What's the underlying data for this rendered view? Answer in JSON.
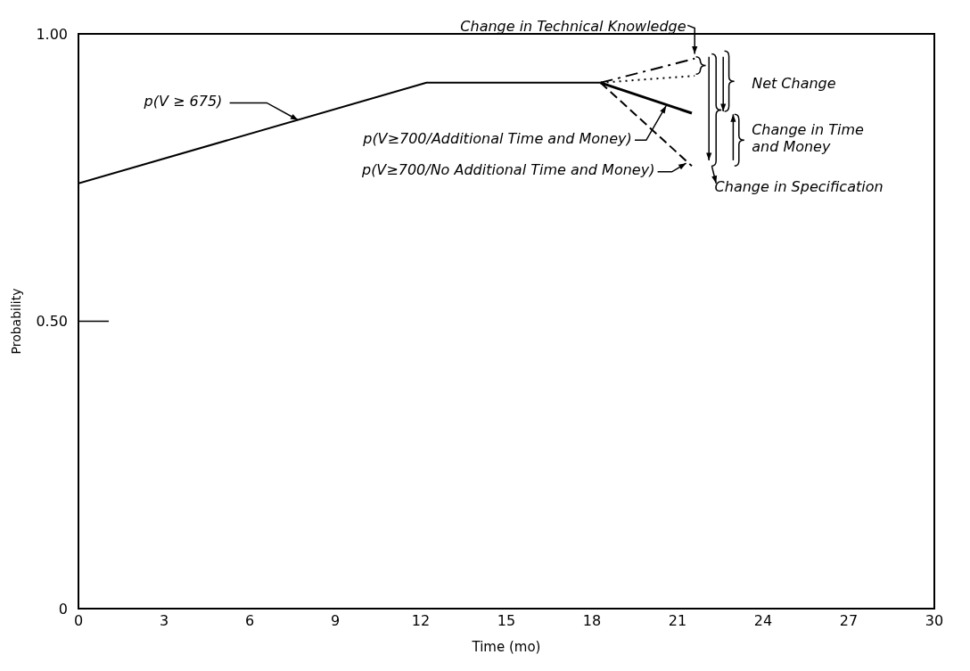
{
  "chart_data": {
    "type": "line",
    "xlabel": "Time (mo)",
    "ylabel": "Probability",
    "xlim": [
      0,
      30
    ],
    "xticks": [
      0,
      3,
      6,
      9,
      12,
      15,
      18,
      21,
      24,
      27,
      30
    ],
    "ylim": [
      0,
      1
    ],
    "yticks": [
      0,
      {
        "value": 0.5,
        "label": "0.50"
      },
      {
        "value": 1,
        "label": "1.00"
      }
    ],
    "marker": "none",
    "series": [
      {
        "color": "#000000",
        "x": [
          0,
          12.2,
          18.3
        ],
        "values": [
          0.74,
          0.915,
          0.915
        ],
        "line_style": "solid"
      },
      {
        "color": "#000000",
        "x": [
          18.3,
          21.6
        ],
        "values": [
          0.915,
          0.957
        ],
        "line_style": "dashdot"
      },
      {
        "color": "#000000",
        "x": [
          18.3,
          21.6
        ],
        "values": [
          0.915,
          0.927
        ],
        "line_style": "dotted"
      },
      {
        "color": "#000000",
        "x": [
          18.3,
          21.5
        ],
        "values": [
          0.915,
          0.862
        ],
        "line_style": "solid"
      },
      {
        "color": "#000000",
        "x": [
          18.3,
          21.5
        ],
        "values": [
          0.915,
          0.77
        ],
        "line_style": "dashed"
      }
    ],
    "annotations": [
      {
        "text": "p(V ≥ 675)",
        "x": 7.7,
        "y": 0.85
      },
      "Change in Technical Knowledge",
      "Net Change",
      "p(V≥700/Additional Time and Money)",
      "p(V≥700/No Additional Time and Money)",
      "Change in Time\nand Money",
      "Change in Specification"
    ]
  }
}
